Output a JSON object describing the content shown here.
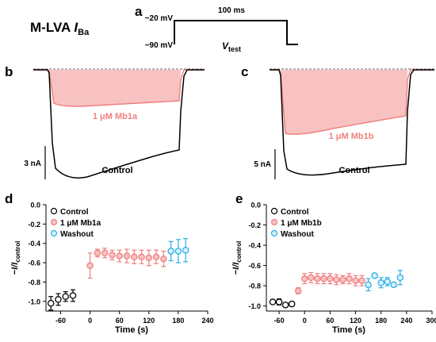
{
  "header": {
    "title_main": "M-LVA ",
    "title_i": "I",
    "title_sub": "Ba",
    "protocol": {
      "v_high": "−20 mV",
      "v_low": "−90 mV",
      "duration": "100 ms",
      "label_v": "V",
      "label_sub": "test"
    }
  },
  "colors": {
    "control": "#000000",
    "mb1": "#f08080",
    "mb1_fill": "#f8c2c2",
    "washout": "#29aee6"
  },
  "chart_data": [
    {
      "panel": "a",
      "type": "line",
      "description_units": "voltage protocol",
      "step": {
        "holding_mv": -90,
        "test_mv": -20,
        "duration_ms": 100
      }
    },
    {
      "panel": "b",
      "type": "line",
      "scale_bar": "3 nA",
      "series": [
        {
          "name": "Control",
          "color": "#000000"
        },
        {
          "name": "1 μM Mb1a",
          "color": "#f08080"
        }
      ]
    },
    {
      "panel": "c",
      "type": "line",
      "scale_bar": "5 nA",
      "series": [
        {
          "name": "Control",
          "color": "#000000"
        },
        {
          "name": "1 μM Mb1b",
          "color": "#f08080"
        }
      ]
    },
    {
      "panel": "d",
      "type": "scatter",
      "xlabel": "Time (s)",
      "ylabel": "−I/I",
      "ylabel_sub": "control",
      "xlim": [
        -90,
        240
      ],
      "ylim": [
        -1.1,
        0.0
      ],
      "xticks": [
        -60,
        0,
        60,
        120,
        180,
        240
      ],
      "yticks": [
        -1.0,
        -0.8,
        -0.6,
        -0.4,
        -0.2,
        0.0
      ],
      "legend": [
        "Control",
        "1 μM Mb1a",
        "Washout"
      ],
      "series": [
        {
          "name": "Control",
          "points": [
            [
              -80,
              -1.02,
              0.07
            ],
            [
              -65,
              -0.98,
              0.06
            ],
            [
              -50,
              -0.95,
              0.05
            ],
            [
              -35,
              -0.94,
              0.06
            ]
          ]
        },
        {
          "name": "1 μM Mb1a",
          "points": [
            [
              0,
              -0.63,
              0.13
            ],
            [
              15,
              -0.5,
              0.04
            ],
            [
              30,
              -0.5,
              0.05
            ],
            [
              45,
              -0.52,
              0.05
            ],
            [
              60,
              -0.53,
              0.06
            ],
            [
              75,
              -0.53,
              0.07
            ],
            [
              90,
              -0.54,
              0.07
            ],
            [
              105,
              -0.54,
              0.07
            ],
            [
              120,
              -0.55,
              0.08
            ],
            [
              135,
              -0.54,
              0.07
            ],
            [
              150,
              -0.56,
              0.08
            ]
          ]
        },
        {
          "name": "Washout",
          "points": [
            [
              165,
              -0.48,
              0.1
            ],
            [
              180,
              -0.48,
              0.12
            ],
            [
              195,
              -0.47,
              0.12
            ]
          ]
        }
      ]
    },
    {
      "panel": "e",
      "type": "scatter",
      "xlabel": "Time (s)",
      "ylabel": "−I/I",
      "ylabel_sub": "control",
      "xlim": [
        -90,
        300
      ],
      "ylim": [
        -1.05,
        0.0
      ],
      "xticks": [
        -60,
        0,
        60,
        120,
        180,
        240,
        300
      ],
      "yticks": [
        -1.0,
        -0.8,
        -0.6,
        -0.4,
        -0.2,
        0.0
      ],
      "legend": [
        "Control",
        "1 μM Mb1b",
        "Washout"
      ],
      "series": [
        {
          "name": "Control",
          "points": [
            [
              -75,
              -0.96,
              0.02
            ],
            [
              -60,
              -0.96,
              0.03
            ],
            [
              -45,
              -0.99,
              0.02
            ],
            [
              -30,
              -0.98,
              0.02
            ]
          ]
        },
        {
          "name": "1 μM Mb1b",
          "points": [
            [
              -15,
              -0.85,
              0.03
            ],
            [
              0,
              -0.73,
              0.05
            ],
            [
              15,
              -0.72,
              0.05
            ],
            [
              30,
              -0.73,
              0.05
            ],
            [
              45,
              -0.73,
              0.05
            ],
            [
              60,
              -0.73,
              0.05
            ],
            [
              75,
              -0.74,
              0.05
            ],
            [
              90,
              -0.74,
              0.04
            ],
            [
              105,
              -0.73,
              0.05
            ],
            [
              120,
              -0.75,
              0.05
            ],
            [
              135,
              -0.75,
              0.05
            ]
          ]
        },
        {
          "name": "Washout",
          "points": [
            [
              150,
              -0.79,
              0.06
            ],
            [
              165,
              -0.7,
              0.02
            ],
            [
              180,
              -0.77,
              0.05
            ],
            [
              195,
              -0.76,
              0.04
            ],
            [
              210,
              -0.79,
              0.02
            ],
            [
              225,
              -0.72,
              0.07
            ]
          ]
        }
      ]
    }
  ],
  "panels": {
    "a": {
      "letter": "a"
    },
    "b": {
      "letter": "b",
      "scale": "3 nA",
      "drug": "1 μM Mb1a",
      "control": "Control"
    },
    "c": {
      "letter": "c",
      "scale": "5 nA",
      "drug": "1 μM Mb1b",
      "control": "Control"
    },
    "d": {
      "letter": "d",
      "xlabel": "Time (s)",
      "ylabel": "−I/I",
      "ylabel_sub": "control",
      "legend": [
        "Control",
        "1 μM Mb1a",
        "Washout"
      ]
    },
    "e": {
      "letter": "e",
      "xlabel": "Time (s)",
      "ylabel": "−I/I",
      "ylabel_sub": "control",
      "legend": [
        "Control",
        "1 μM Mb1b",
        "Washout"
      ]
    }
  }
}
